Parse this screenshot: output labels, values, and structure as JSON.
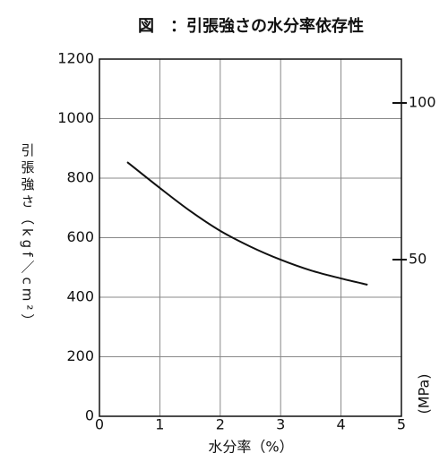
{
  "chart_data": {
    "type": "line",
    "title": "図　：引張強さの水分率依存性",
    "x_label": "水分率（%）",
    "y_label": "引張強さ（kgf／cm²）",
    "y2_label": "(MPa)",
    "xlim": [
      0,
      5
    ],
    "xticks": [
      0,
      1,
      2,
      3,
      4,
      5
    ],
    "ylim": [
      0,
      1200
    ],
    "yticks": [
      0,
      200,
      400,
      600,
      800,
      1000,
      1200
    ],
    "y2lim": [
      0,
      114
    ],
    "y2ticks": [
      50,
      100
    ],
    "grid": true,
    "series": [
      {
        "color": "#111111",
        "x": [
          0.46,
          1,
          1.5,
          2,
          2.5,
          3,
          3.5,
          4,
          4.44
        ],
        "values": [
          854,
          767,
          690,
          623,
          570,
          526,
          490,
          463,
          442
        ]
      }
    ]
  }
}
